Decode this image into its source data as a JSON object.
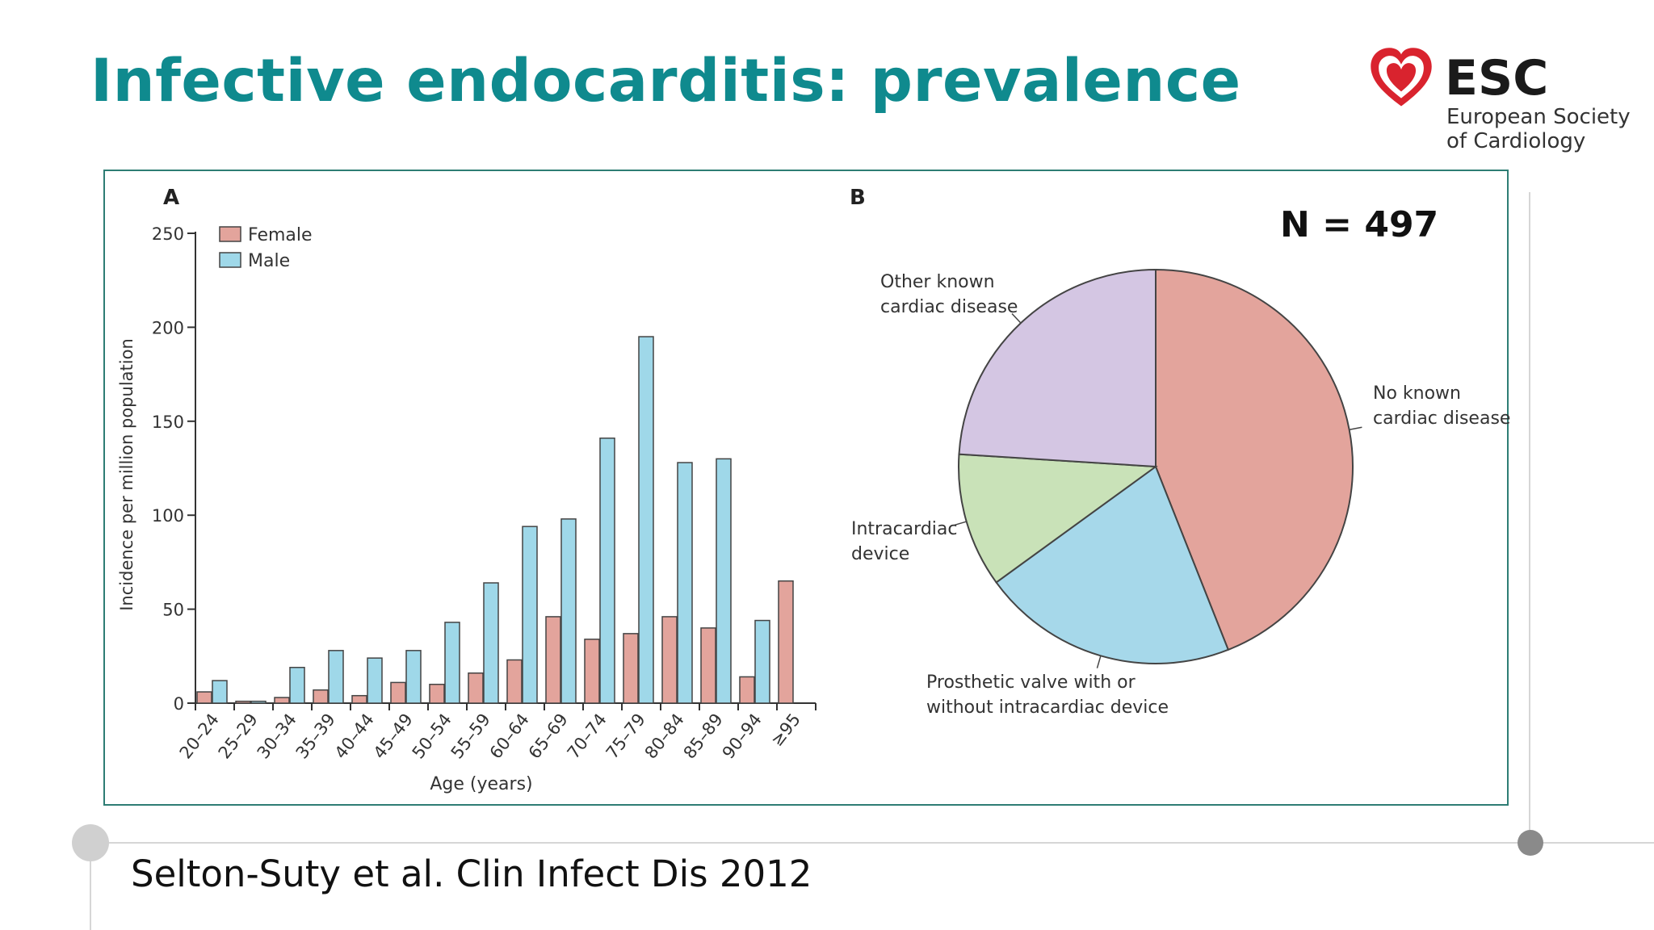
{
  "slide": {
    "title": "Infective endocarditis: prevalence",
    "citation": "Selton-Suty et al. Clin Infect Dis 2012",
    "n_label": "N = 497",
    "panel_a_label": "A",
    "panel_b_label": "B",
    "colors": {
      "title": "#0f8a8e",
      "logo_heart": "#d9232e",
      "box_border": "#2e7d74"
    }
  },
  "logo": {
    "name": "ESC",
    "line1": "European Society",
    "line2": "of Cardiology",
    "icon": "heart-icon"
  },
  "chart_data": [
    {
      "type": "bar",
      "panel": "A",
      "xlabel": "Age (years)",
      "ylabel": "Incidence per million population",
      "ylim": [
        0,
        250
      ],
      "yticks": [
        0,
        50,
        100,
        150,
        200,
        250
      ],
      "categories": [
        "20–24",
        "25–29",
        "30–34",
        "35–39",
        "40–44",
        "45–49",
        "50–54",
        "55–59",
        "60–64",
        "65–69",
        "70–74",
        "75–79",
        "80–84",
        "85–89",
        "90–94",
        "≥95"
      ],
      "series": [
        {
          "name": "Female",
          "color": "#e3a49c",
          "values": [
            6,
            1,
            3,
            7,
            4,
            11,
            10,
            16,
            23,
            46,
            34,
            37,
            46,
            40,
            14,
            65
          ]
        },
        {
          "name": "Male",
          "color": "#9fd8e9",
          "values": [
            12,
            1,
            19,
            28,
            24,
            28,
            43,
            64,
            94,
            98,
            141,
            195,
            128,
            130,
            44,
            null
          ]
        }
      ],
      "legend_position": "top-left"
    },
    {
      "type": "pie",
      "panel": "B",
      "slices": [
        {
          "label": "No known cardiac disease",
          "value": 44,
          "color": "#e3a49c"
        },
        {
          "label": "Prosthetic valve with or without intracardiac device",
          "value": 21,
          "color": "#a6d8ea"
        },
        {
          "label": "Intracardiac device",
          "value": 11,
          "color": "#c9e2b8"
        },
        {
          "label": "Other known cardiac disease",
          "value": 24,
          "color": "#d4c6e3"
        }
      ],
      "label_lines": [
        [
          "No known",
          "cardiac disease"
        ],
        [
          "Prosthetic valve with or",
          "without intracardiac device"
        ],
        [
          "Intracardiac",
          "device"
        ],
        [
          "Other known",
          "cardiac disease"
        ]
      ]
    }
  ]
}
